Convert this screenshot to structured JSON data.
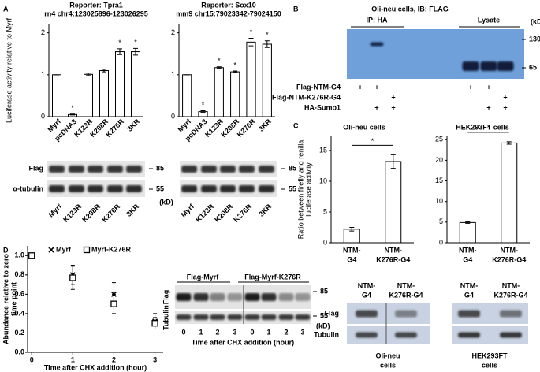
{
  "panel_labels": [
    "A",
    "B",
    "C",
    "D"
  ],
  "chart_data": [
    {
      "type": "bar",
      "title": "Reporter: Tpra1",
      "subtitle": "rn4 chr4:123025896-123026295",
      "y_label": "Luciferase activity relative to Myrf",
      "categories": [
        "Myrf",
        "pcDNA3",
        "K123R",
        "K208R",
        "K276R",
        "3KR"
      ],
      "values": [
        1,
        0.05,
        1.01,
        1.1,
        1.55,
        1.55
      ],
      "errors": [
        0,
        0.01,
        0.03,
        0.03,
        0.07,
        0.08
      ],
      "annotations": [
        null,
        "*",
        null,
        null,
        "*",
        "*"
      ],
      "color": "#ffffff",
      "ylim": [
        0,
        2.2
      ],
      "yticks": [
        0,
        1,
        2
      ]
    },
    {
      "type": "bar",
      "title": "Reporter: Sox10",
      "subtitle": "mm9 chr15:79023342-79024150",
      "categories": [
        "Myrf",
        "pcDNA3",
        "K123R",
        "K208R",
        "K276R",
        "3KR"
      ],
      "values": [
        1,
        0.12,
        1.17,
        1.07,
        1.78,
        1.73
      ],
      "errors": [
        0,
        0.02,
        0.02,
        0.02,
        0.09,
        0.08
      ],
      "annotations": [
        null,
        "*",
        "*",
        "*",
        "*",
        "*"
      ],
      "color": "#ffffff",
      "ylim": [
        0,
        2.2
      ],
      "yticks": [
        0,
        1,
        2
      ]
    },
    {
      "type": "bar",
      "title": "Oli-neu cells",
      "y_label": [
        "Ratio between firefly and renilla",
        "luciferase activity"
      ],
      "categories": [
        [
          "NTM-",
          "G4"
        ],
        [
          "NTM-",
          "K276R-G4"
        ]
      ],
      "values": [
        2.2,
        13.2
      ],
      "errors": [
        0.3,
        1.1
      ],
      "significance": "*",
      "color": "#ffffff",
      "ylim": [
        0,
        17.3
      ],
      "yticks": [
        0,
        5,
        10,
        15
      ]
    },
    {
      "type": "bar",
      "title": "HEK293FT cells",
      "categories": [
        [
          "NTM-",
          "G4"
        ],
        [
          "NTM-",
          "K276R-G4"
        ]
      ],
      "values": [
        4.9,
        24.2
      ],
      "errors": [
        0.2,
        0.3
      ],
      "significance": "*",
      "color": "#ffffff",
      "ylim": [
        0,
        26
      ],
      "yticks": [
        0,
        5,
        10,
        15,
        20,
        25
      ]
    },
    {
      "type": "scatter",
      "y_label": [
        "Abundance relative to zero",
        "time point"
      ],
      "x_label": "Time after CHX addition (hour)",
      "x": [
        0,
        1,
        2,
        3
      ],
      "series": [
        {
          "name": "Myrf",
          "marker": "x",
          "color": "#000000",
          "values": [
            1,
            0.8,
            0.6,
            0.32
          ],
          "errors": [
            0,
            0.1,
            0.12,
            0.08
          ]
        },
        {
          "name": "Myrf-K276R",
          "marker": "square",
          "color": "#000000",
          "values": [
            1,
            0.77,
            0.5,
            0.3
          ],
          "errors": [
            0,
            0.12,
            0.1,
            0.06
          ]
        }
      ],
      "xlim": [
        -0.1,
        3.2
      ],
      "xticks": [
        0,
        1,
        2,
        3
      ],
      "ylim": [
        0,
        1.1
      ],
      "yticks": [
        {
          "value": 0,
          "label": "0.0"
        },
        {
          "value": 0.2,
          "label": "0.2"
        },
        {
          "value": 0.4,
          "label": "0.4"
        },
        {
          "value": 0.6,
          "label": "0.6"
        },
        {
          "value": 0.8,
          "label": "0.8"
        },
        {
          "value": 1,
          "label": "1.0"
        }
      ]
    }
  ],
  "blot_A": {
    "rows": [
      "Flag",
      "α-tubulin"
    ],
    "left": {
      "markers": [
        85,
        55
      ],
      "unit": "(kD)",
      "lanes": [
        "Myrf",
        "K123R",
        "K208R",
        "K276R",
        "3KR"
      ]
    },
    "right": {
      "markers": [
        85,
        55
      ],
      "lanes": [
        "Myrf",
        "K123R",
        "K208R",
        "K276R",
        "3KR"
      ]
    }
  },
  "blot_B": {
    "title": "Oli-neu cells, IB: FLAG",
    "groups": [
      "IP: HA",
      "Lysate"
    ],
    "unit": "(kD)",
    "markers": [
      130,
      65
    ],
    "rows": [
      {
        "label": "Flag-NTM-G4",
        "cells": [
          "+",
          "+",
          null,
          "+",
          "+",
          null
        ]
      },
      {
        "label": "Flag-NTM-K276R-G4",
        "cells": [
          null,
          null,
          "+",
          null,
          null,
          "+"
        ]
      },
      {
        "label": "HA-Sumo1",
        "cells": [
          null,
          "+",
          "+",
          null,
          "+",
          "+"
        ]
      }
    ]
  },
  "blot_C": {
    "rows": [
      "Flag",
      "Tubulin"
    ],
    "left": {
      "lanes": [
        [
          "NTM-",
          "G4"
        ],
        [
          "NTM-",
          "K276R-G4"
        ]
      ],
      "cell": [
        "Oli-neu",
        "cells"
      ]
    },
    "right": {
      "lanes": [
        [
          "NTM-",
          "G4"
        ],
        [
          "NTM-",
          "K276R-G4"
        ]
      ],
      "cell": [
        "HEK293FT",
        "cells"
      ]
    }
  },
  "blot_D": {
    "groups": [
      "Flag-Myrf",
      "Flag-Myrf-K276R"
    ],
    "rows": [
      "Flag",
      "Tubulin"
    ],
    "markers": [
      85,
      55
    ],
    "unit": "(kD)",
    "lanes": [
      0,
      1,
      2,
      3,
      0,
      1,
      2,
      3
    ],
    "x_label": "Time after CHX addition (hour)"
  }
}
